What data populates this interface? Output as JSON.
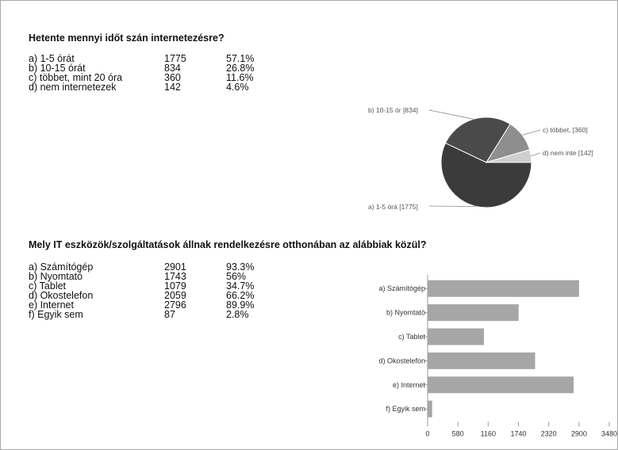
{
  "q1": {
    "title": "Hetente mennyi időt szán internetezésre?",
    "rows": [
      {
        "label": "a) 1-5 órát",
        "count": "1775",
        "pct": "57.1%"
      },
      {
        "label": "b) 10-15 órát",
        "count": "834",
        "pct": "26.8%"
      },
      {
        "label": "c) többet, mint 20 óra",
        "count": "360",
        "pct": "11.6%"
      },
      {
        "label": "d) nem internetezek",
        "count": "142",
        "pct": "4.6%"
      }
    ]
  },
  "q2": {
    "title": "Mely IT eszközök/szolgáltatások állnak rendelkezésre otthonában az alábbiak közül?",
    "rows": [
      {
        "label": "a) Számítógép",
        "count": "2901",
        "pct": "93.3%"
      },
      {
        "label": "b) Nyomtató",
        "count": "1743",
        "pct": "56%"
      },
      {
        "label": "c) Tablet",
        "count": "1079",
        "pct": "34.7%"
      },
      {
        "label": "d) Okostelefon",
        "count": "2059",
        "pct": "66.2%"
      },
      {
        "label": "e) Internet",
        "count": "2796",
        "pct": "89.9%"
      },
      {
        "label": "f) Egyik sem",
        "count": "87",
        "pct": "2.8%"
      }
    ]
  },
  "chart_data": [
    {
      "type": "pie",
      "slices": [
        {
          "label": "a) 1-5 órá [1775]",
          "value": 1775,
          "color": "#3b3b3b"
        },
        {
          "label": "b) 10-15 ór [834]",
          "value": 834,
          "color": "#4a4a4a"
        },
        {
          "label": "c) többet,  [360]",
          "value": 360,
          "color": "#8e8e8e"
        },
        {
          "label": "d) nem inte [142]",
          "value": 142,
          "color": "#cfcfcf"
        }
      ]
    },
    {
      "type": "bar",
      "orientation": "horizontal",
      "categories": [
        "a) Számítógép",
        "b) Nyomtató",
        "c) Tablet",
        "d) Okostelefon",
        "e) Internet",
        "f) Egyik sem"
      ],
      "values": [
        2901,
        1743,
        1079,
        2059,
        2796,
        87
      ],
      "xlim": [
        0,
        3480
      ],
      "xticks": [
        "0",
        "580",
        "1160",
        "1740",
        "2320",
        "2900",
        "3480"
      ],
      "bar_color": "#a6a6a6"
    }
  ]
}
